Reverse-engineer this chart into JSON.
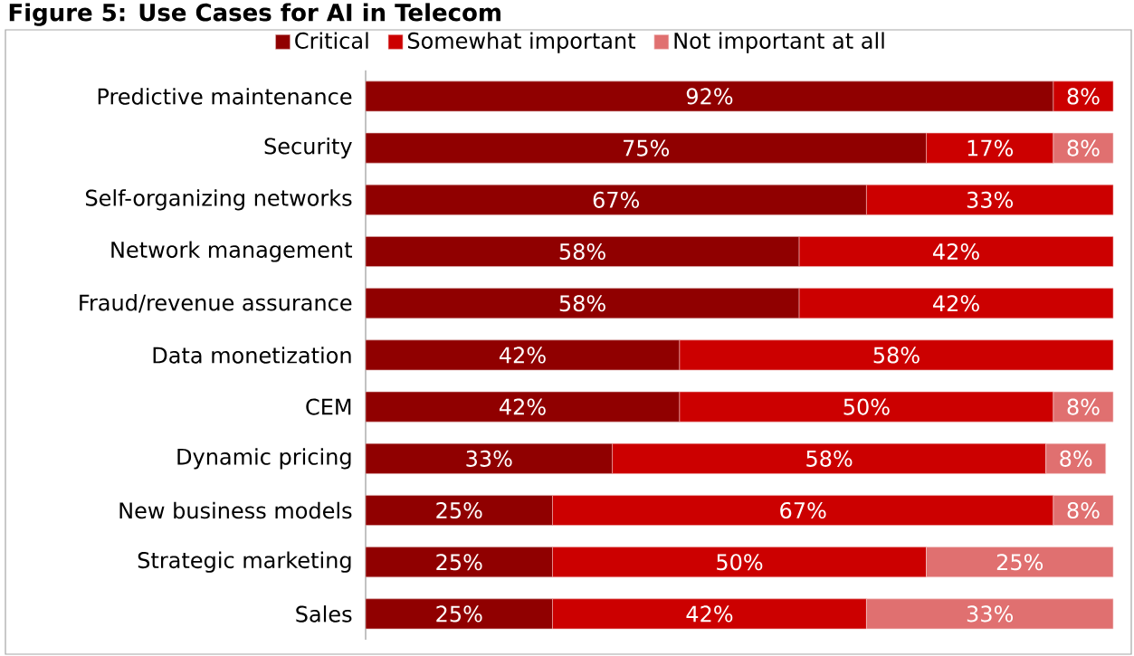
{
  "chart_data": {
    "type": "bar",
    "orientation": "horizontal",
    "stacked": true,
    "legend": "top",
    "title": "Figure 5: Use Cases for AI in Telecom",
    "categories": [
      "Predictive maintenance",
      "Security",
      "Self-organizing networks",
      "Network management",
      "Fraud/revenue assurance",
      "Data monetization",
      "CEM",
      "Dynamic pricing",
      "New business models",
      "Strategic marketing",
      "Sales"
    ],
    "series": [
      {
        "name": "Critical",
        "color": "#900000",
        "values": [
          92,
          75,
          67,
          58,
          58,
          42,
          42,
          33,
          25,
          25,
          25
        ],
        "value_labels": [
          "92%",
          "75%",
          "67%",
          "58%",
          "58%",
          "42%",
          "42%",
          "33%",
          "25%",
          "25%",
          "25%"
        ]
      },
      {
        "name": "Somewhat important",
        "color": "#cc0000",
        "values": [
          8,
          17,
          33,
          42,
          42,
          58,
          50,
          58,
          67,
          50,
          42
        ],
        "value_labels": [
          "8%",
          "17%",
          "33%",
          "42%",
          "42%",
          "58%",
          "50%",
          "58%",
          "67%",
          "50%",
          "42%"
        ]
      },
      {
        "name": "Not important at all",
        "color": "#e07070",
        "values": [
          null,
          8,
          null,
          null,
          null,
          null,
          8,
          8,
          8,
          25,
          33
        ],
        "value_labels": [
          null,
          "8%",
          null,
          null,
          null,
          null,
          "8%",
          "8%",
          "8%",
          "25%",
          "33%"
        ]
      }
    ]
  }
}
